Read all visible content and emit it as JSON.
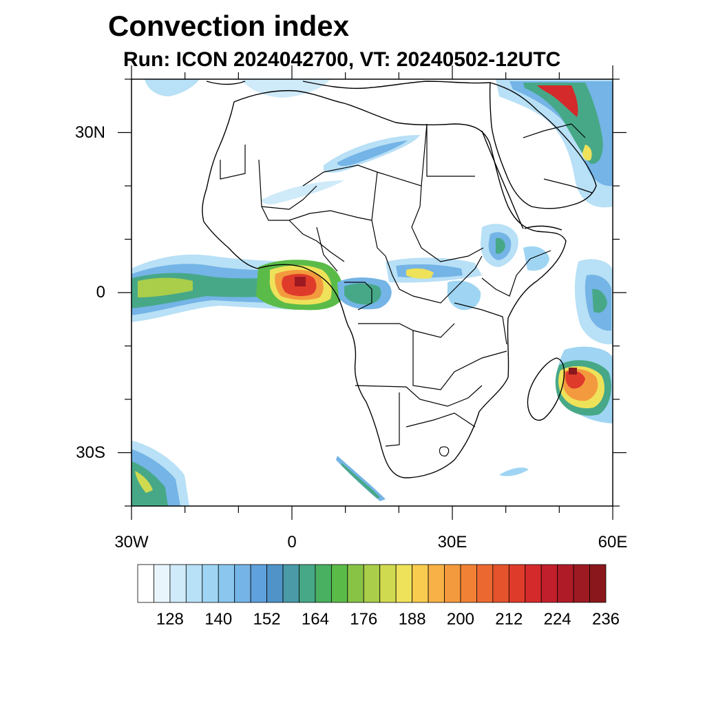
{
  "title": "Convection index",
  "subtitle": "Run: ICON 2024042700,  VT: 20240502-12UTC",
  "axes": {
    "y_ticks": [
      {
        "value": 30,
        "label": "30N"
      },
      {
        "value": 0,
        "label": "0"
      },
      {
        "value": -30,
        "label": "30S"
      }
    ],
    "x_ticks": [
      {
        "value": -30,
        "label": "30W"
      },
      {
        "value": 0,
        "label": "0"
      },
      {
        "value": 30,
        "label": "30E"
      },
      {
        "value": 60,
        "label": "60E"
      }
    ],
    "lon_range": [
      -30,
      60
    ],
    "lat_range": [
      -40,
      40
    ]
  },
  "colorbar": {
    "labels": [
      "128",
      "140",
      "152",
      "164",
      "176",
      "188",
      "200",
      "212",
      "224",
      "236"
    ],
    "colors": [
      "#ffffff",
      "#e8f5fc",
      "#cfeaf8",
      "#b8e0f6",
      "#9fd5f3",
      "#8ac6ee",
      "#74b4e6",
      "#5fa1dc",
      "#5093c8",
      "#4a9aa8",
      "#47a888",
      "#48b060",
      "#5bbb48",
      "#88c346",
      "#aacd4a",
      "#d0da50",
      "#eee25a",
      "#f9cb4f",
      "#f7b146",
      "#f49a3e",
      "#f08135",
      "#eb6930",
      "#e5532d",
      "#df3b2b",
      "#d42a2b",
      "#c21f2c",
      "#b01b28",
      "#9d1a22",
      "#8a171c"
    ]
  },
  "regions": [
    "Atlantic equatorial convection band",
    "Gulf of Guinea intense convection",
    "Congo basin convection",
    "East Africa highlands convection",
    "Madagascar cyclone",
    "Arabian Gulf convection",
    "Sahara cloud band",
    "South Atlantic cloud streak"
  ]
}
